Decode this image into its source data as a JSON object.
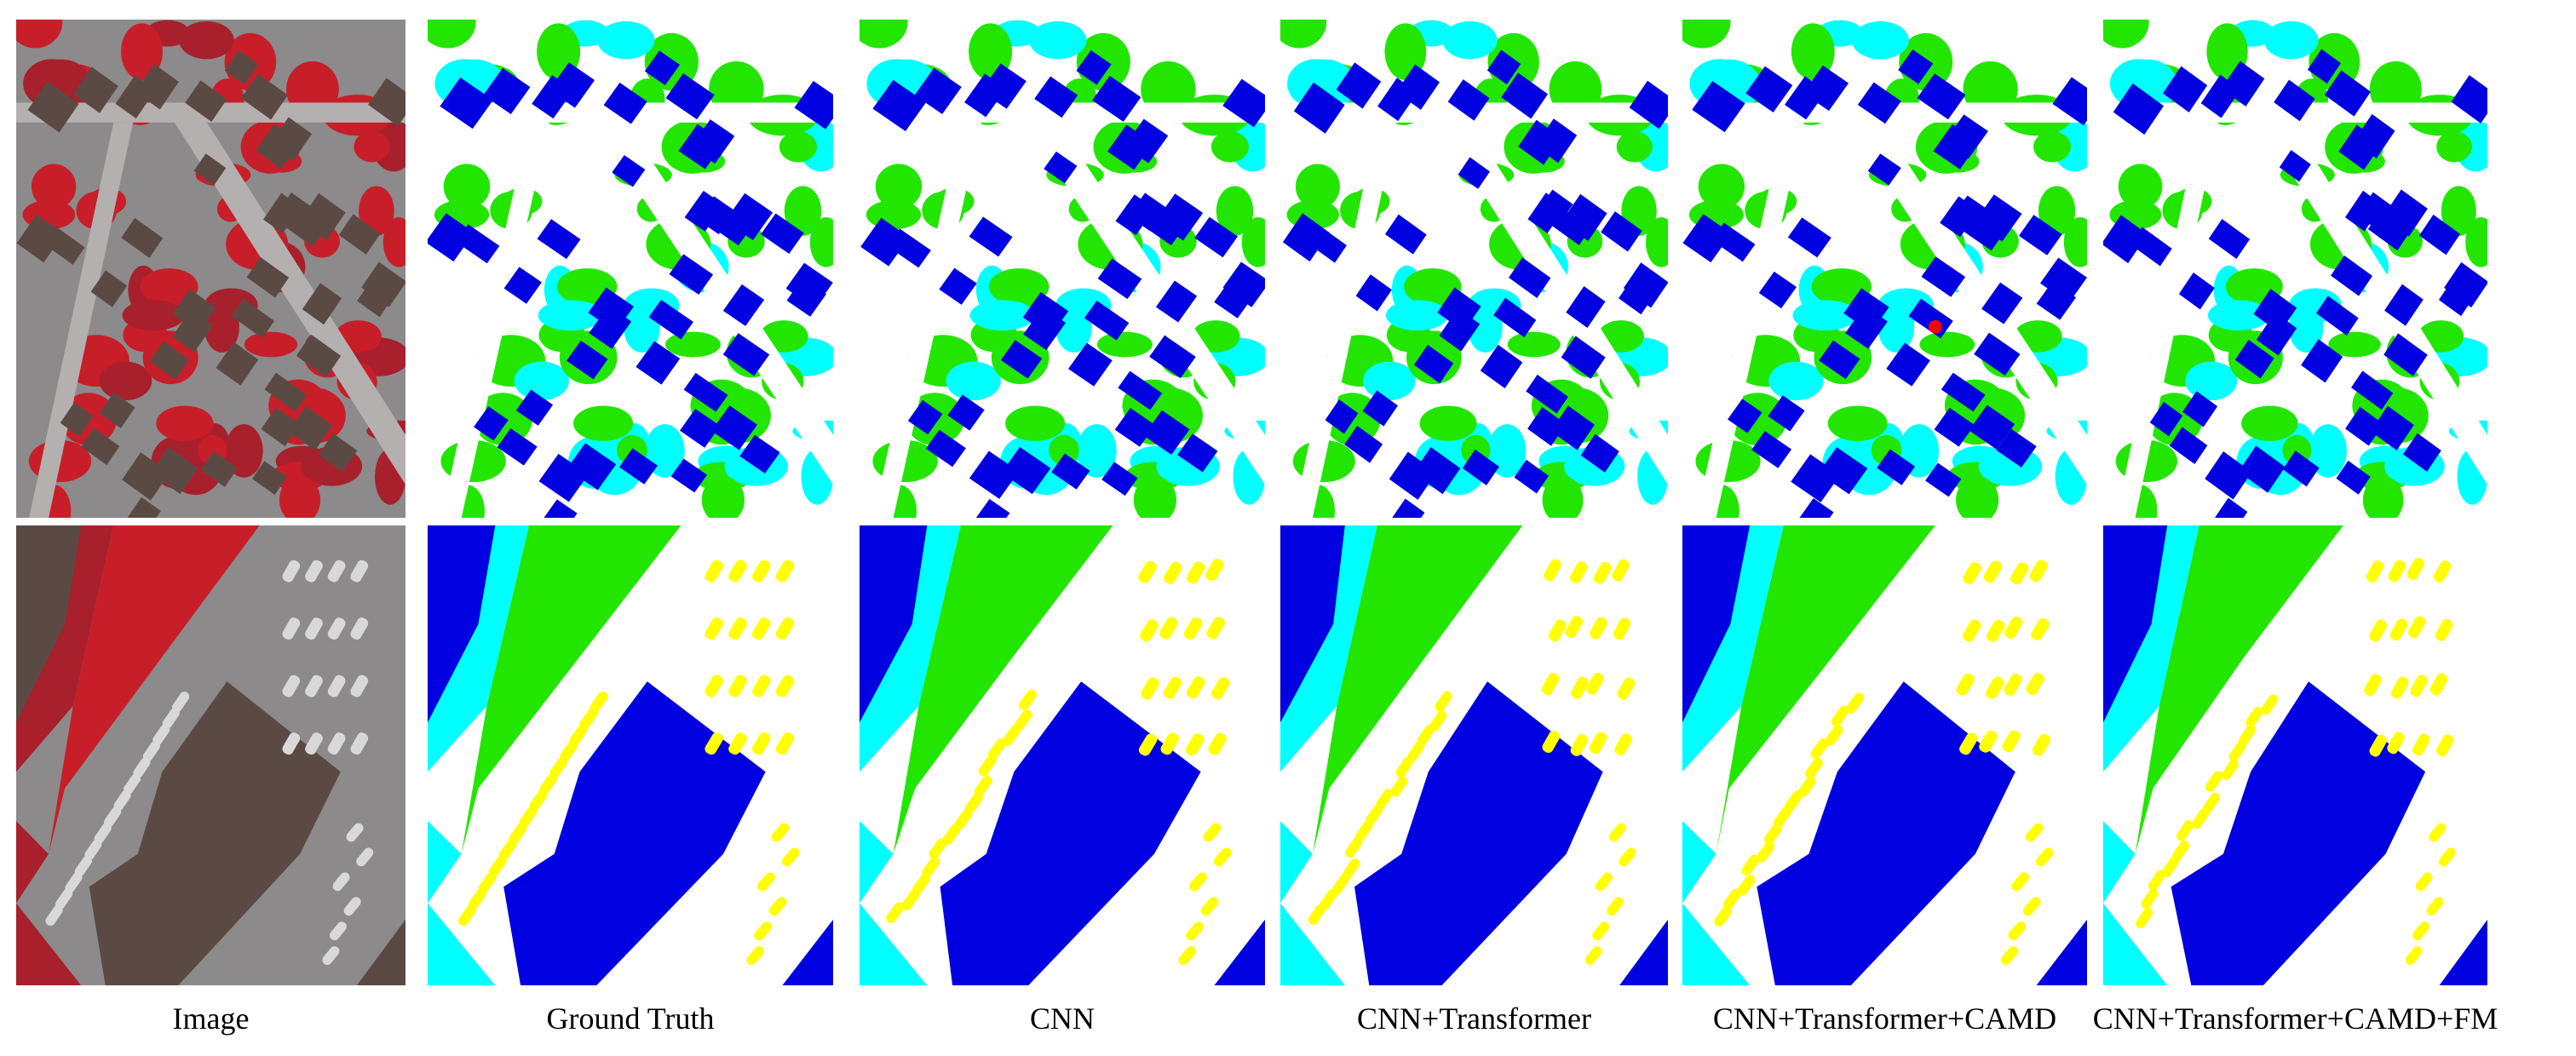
{
  "captions": [
    "Image",
    "Ground Truth",
    "CNN",
    "CNN+Transformer",
    "CNN+Transformer+CAMD",
    "CNN+Transformer+CAMD+FM"
  ]
}
